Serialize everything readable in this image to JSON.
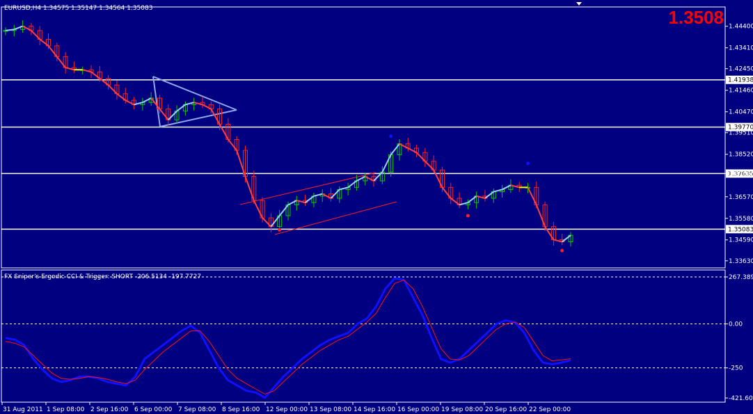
{
  "header": {
    "symbol_label": "EURUSD,H4  1.34575 1.35147 1.34564 1.35083"
  },
  "current_price_big": "1.3508",
  "colors": {
    "background": "#000080",
    "frame": "#ffffff",
    "bull_candle": "#00d000",
    "bear_candle": "#ff2020",
    "big_price": "#ff0000",
    "ma_up": "#ffff00",
    "ma_down": "#ff4040",
    "ma_flat": "#9ad0ff",
    "level_line": "#ffffff",
    "pattern_line_blue": "#8fa8e8",
    "pattern_line_red": "#ff2020",
    "osc_main": "#1010ff",
    "osc_trigger": "#ff1010"
  },
  "chart_data": [
    {
      "type": "line",
      "title": "EURUSD,H4",
      "subtitle": "1.34575 1.35147 1.34564 1.35083",
      "price_axis": {
        "labels": [
          "1.44400",
          "1.43410",
          "1.42450",
          "1.41460",
          "1.40470",
          "1.39510",
          "1.38520",
          "1.37635",
          "1.36570",
          "1.35580",
          "1.34590",
          "1.33630"
        ],
        "ylim": [
          1.334,
          1.449
        ]
      },
      "price_levels": [
        {
          "value": 1.41938,
          "label": "1.41938"
        },
        {
          "value": 1.3977,
          "label": "1.39770"
        },
        {
          "value": 1.37635,
          "label": "1.37635"
        },
        {
          "value": 1.35083,
          "label": "1.35083"
        }
      ],
      "x_ticks": [
        "31 Aug 2011",
        "1 Sep 08:00",
        "2 Sep 16:00",
        "6 Sep 00:00",
        "7 Sep 08:00",
        "8 Sep 16:00",
        "12 Sep 00:00",
        "13 Sep 08:00",
        "14 Sep 16:00",
        "16 Sep 00:00",
        "19 Sep 08:00",
        "20 Sep 16:00",
        "22 Sep 00:00"
      ],
      "series": [
        {
          "values": [
            1.442,
            1.4425,
            1.444,
            1.442,
            1.438,
            1.435,
            1.43,
            1.425,
            1.424,
            1.424,
            1.423,
            1.42,
            1.417,
            1.413,
            1.41,
            1.408,
            1.409,
            1.411,
            1.406,
            1.401,
            1.405,
            1.408,
            1.409,
            1.408,
            1.406,
            1.399,
            1.392,
            1.387,
            1.375,
            1.364,
            1.356,
            1.352,
            1.357,
            1.362,
            1.364,
            1.363,
            1.366,
            1.367,
            1.365,
            1.369,
            1.37,
            1.373,
            1.375,
            1.373,
            1.377,
            1.385,
            1.39,
            1.388,
            1.386,
            1.382,
            1.378,
            1.37,
            1.365,
            1.362,
            1.363,
            1.366,
            1.365,
            1.368,
            1.369,
            1.371,
            1.37,
            1.37,
            1.362,
            1.352,
            1.346,
            1.345,
            1.348
          ]
        }
      ],
      "markers": [
        {
          "x_index": 45,
          "value": 1.3935,
          "color": "#1010ff"
        },
        {
          "x_index": 61,
          "value": 1.381,
          "color": "#1010ff"
        },
        {
          "x_index": 32,
          "value": 1.3505,
          "color": "#ff2020"
        },
        {
          "x_index": 54,
          "value": 1.357,
          "color": "#ff2020"
        },
        {
          "x_index": 65,
          "value": 1.341,
          "color": "#ff2020"
        }
      ]
    },
    {
      "type": "line",
      "title": "FX Sniper's Ergodic CCI & Trigger: SHORT -206.5134 -197.7727",
      "y_axis": {
        "labels": [
          "267.389",
          "0.00",
          "-250",
          "-421.608"
        ],
        "ylim": [
          -421.608,
          267.389
        ]
      },
      "dashed_levels": [
        267.389,
        0,
        -250
      ],
      "series": [
        {
          "values": [
            -80,
            -90,
            -120,
            -200,
            -260,
            -310,
            -330,
            -320,
            -300,
            -300,
            -310,
            -330,
            -340,
            -350,
            -300,
            -200,
            -160,
            -120,
            -80,
            -40,
            -10,
            -50,
            -150,
            -250,
            -320,
            -350,
            -380,
            -390,
            -420,
            -360,
            -300,
            -250,
            -200,
            -160,
            -120,
            -90,
            -70,
            -50,
            0,
            30,
            100,
            200,
            260,
            250,
            150,
            50,
            -80,
            -200,
            -220,
            -200,
            -150,
            -100,
            -50,
            0,
            20,
            10,
            -50,
            -150,
            -220,
            -230,
            -220,
            -206
          ]
        },
        {
          "values": [
            -100,
            -110,
            -130,
            -180,
            -230,
            -280,
            -310,
            -315,
            -310,
            -300,
            -305,
            -315,
            -330,
            -340,
            -320,
            -260,
            -210,
            -160,
            -120,
            -80,
            -40,
            -40,
            -100,
            -180,
            -260,
            -310,
            -340,
            -370,
            -400,
            -380,
            -330,
            -280,
            -230,
            -190,
            -150,
            -120,
            -90,
            -70,
            -30,
            10,
            60,
            150,
            230,
            250,
            200,
            100,
            -20,
            -140,
            -200,
            -205,
            -180,
            -130,
            -80,
            -30,
            0,
            10,
            -20,
            -100,
            -180,
            -210,
            -205,
            -198
          ]
        }
      ]
    }
  ]
}
